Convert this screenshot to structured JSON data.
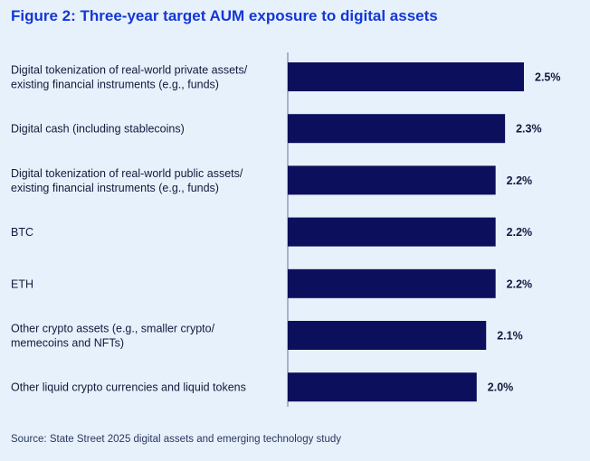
{
  "chart_data": {
    "type": "bar",
    "orientation": "horizontal",
    "title": "Figure 2: Three-year target AUM exposure to digital assets",
    "categories": [
      [
        "Digital tokenization of real-world private assets/",
        "existing financial instruments (e.g., funds)"
      ],
      [
        "Digital cash (including stablecoins)"
      ],
      [
        "Digital tokenization of real-world public assets/",
        "existing financial instruments (e.g., funds)"
      ],
      [
        "BTC"
      ],
      [
        "ETH"
      ],
      [
        "Other crypto assets (e.g., smaller crypto/",
        "memecoins and NFTs)"
      ],
      [
        "Other liquid crypto currencies and liquid tokens"
      ]
    ],
    "values": [
      2.5,
      2.3,
      2.2,
      2.2,
      2.2,
      2.1,
      2.0
    ],
    "value_labels": [
      "2.5%",
      "2.3%",
      "2.2%",
      "2.2%",
      "2.2%",
      "2.1%",
      "2.0%"
    ],
    "xlim": [
      0,
      2.5
    ],
    "grid": false,
    "bar_color": "#0b0f5c",
    "title_color": "#1437d6",
    "background_color": "#e7f1fb"
  },
  "source": "Source: State Street 2025 digital assets and emerging technology study"
}
